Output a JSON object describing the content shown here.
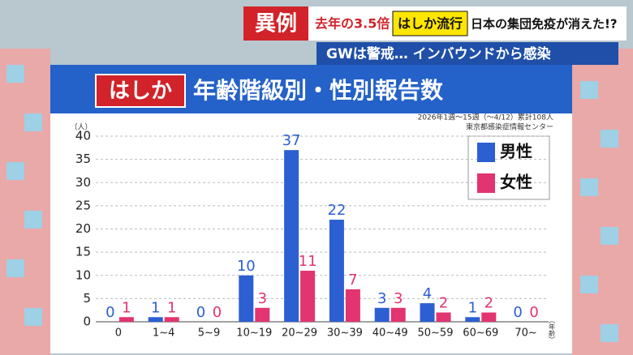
{
  "banner": {
    "tag": "異例",
    "headline_1": "去年の3.5倍",
    "headline_2": "はしか流行",
    "headline_3": "日本の集団免疫が消えた!?",
    "subline": "GWは警戒… インバウンドから感染"
  },
  "chart_data": {
    "type": "bar",
    "title_tag": "はしか",
    "title": "年齢階級別・性別報告数",
    "subtitle": "2026年1週～15週（～4/12）累計108人",
    "source": "東京都感染症情報センター",
    "y_label": "（人）",
    "x_label": "（年齢）",
    "categories": [
      "0",
      "1~4",
      "5~9",
      "10~19",
      "20~29",
      "30~39",
      "40~49",
      "50~59",
      "60~69",
      "70~"
    ],
    "series": [
      {
        "name": "男性",
        "color": "#2c5fd2",
        "values": [
          0,
          1,
          0,
          10,
          37,
          22,
          3,
          4,
          1,
          0
        ]
      },
      {
        "name": "女性",
        "color": "#e23470",
        "values": [
          1,
          1,
          0,
          3,
          11,
          7,
          3,
          2,
          2,
          0
        ]
      }
    ],
    "ylim": [
      0,
      40
    ],
    "yticks": [
      0,
      5,
      10,
      15,
      20,
      25,
      30,
      35,
      40
    ],
    "grid": true,
    "legend": "top-right"
  }
}
